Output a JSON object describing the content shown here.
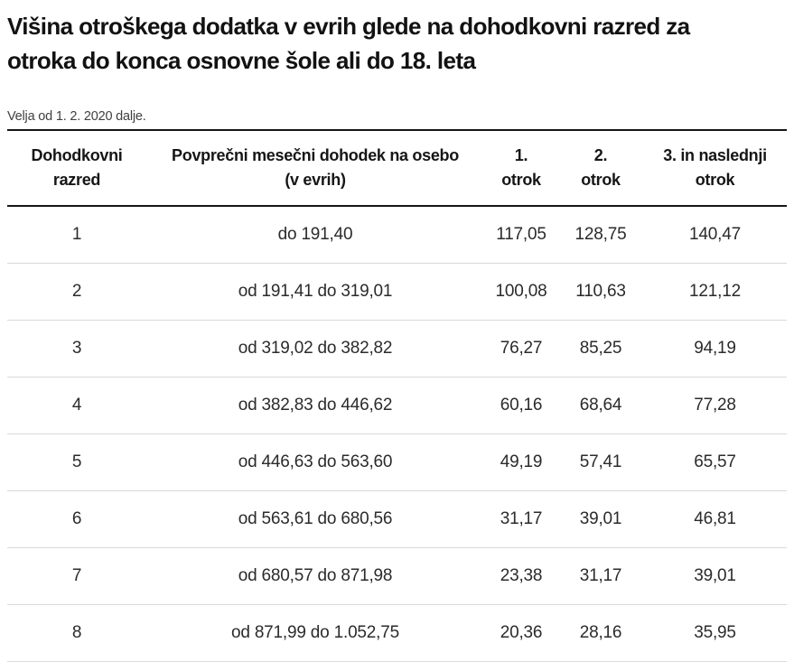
{
  "page": {
    "title_lines": [
      "Višina otroškega dodatka v evrih glede na dohodkovni razred za",
      "otroka do konca osnovne šole ali do 18. leta"
    ],
    "effective_date_note": "Velja od 1. 2. 2020 dalje."
  },
  "colors": {
    "text_primary": "#121212",
    "text_secondary": "#404040",
    "table_heavy_border": "#161616",
    "table_light_border": "#d9d9d9"
  },
  "table": {
    "columns": [
      {
        "id": "razred",
        "label_lines": [
          "Dohodkovni",
          "razred"
        ]
      },
      {
        "id": "dohodek",
        "label_lines": [
          "Povprečni mesečni dohodek na osebo",
          "(v evrih)"
        ]
      },
      {
        "id": "otrok-1",
        "label_lines": [
          "1.",
          "otrok"
        ]
      },
      {
        "id": "otrok-2",
        "label_lines": [
          "2.",
          "otrok"
        ]
      },
      {
        "id": "otrok-3",
        "label_lines": [
          "3. in naslednji",
          "otrok"
        ]
      }
    ],
    "rows": [
      [
        "1",
        "do 191,40",
        "117,05",
        "128,75",
        "140,47"
      ],
      [
        "2",
        "od 191,41 do 319,01",
        "100,08",
        "110,63",
        "121,12"
      ],
      [
        "3",
        "od 319,02 do 382,82",
        "76,27",
        "85,25",
        "94,19"
      ],
      [
        "4",
        "od 382,83 do 446,62",
        "60,16",
        "68,64",
        "77,28"
      ],
      [
        "5",
        "od 446,63 do 563,60",
        "49,19",
        "57,41",
        "65,57"
      ],
      [
        "6",
        "od 563,61 do 680,56",
        "31,17",
        "39,01",
        "46,81"
      ],
      [
        "7",
        "od 680,57 do 871,98",
        "23,38",
        "31,17",
        "39,01"
      ],
      [
        "8",
        "od 871,99 do 1.052,75",
        "20,36",
        "28,16",
        "35,95"
      ]
    ]
  }
}
